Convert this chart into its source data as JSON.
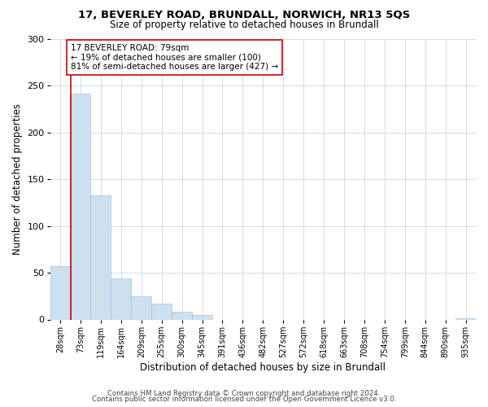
{
  "title": "17, BEVERLEY ROAD, BRUNDALL, NORWICH, NR13 5QS",
  "subtitle": "Size of property relative to detached houses in Brundall",
  "xlabel": "Distribution of detached houses by size in Brundall",
  "ylabel": "Number of detached properties",
  "bin_labels": [
    "28sqm",
    "73sqm",
    "119sqm",
    "164sqm",
    "209sqm",
    "255sqm",
    "300sqm",
    "345sqm",
    "391sqm",
    "436sqm",
    "482sqm",
    "527sqm",
    "572sqm",
    "618sqm",
    "663sqm",
    "708sqm",
    "754sqm",
    "799sqm",
    "844sqm",
    "890sqm",
    "935sqm"
  ],
  "bar_heights": [
    57,
    242,
    133,
    44,
    25,
    17,
    8,
    5,
    0,
    0,
    0,
    0,
    0,
    0,
    0,
    0,
    0,
    0,
    0,
    0,
    1
  ],
  "bar_color": "#cce0f0",
  "bar_edge_color": "#a0c4e0",
  "vline_x_index": 1,
  "vline_color": "#cc0000",
  "annotation_line1": "17 BEVERLEY ROAD: 79sqm",
  "annotation_line2": "← 19% of detached houses are smaller (100)",
  "annotation_line3": "81% of semi-detached houses are larger (427) →",
  "ylim": [
    0,
    300
  ],
  "yticks": [
    0,
    50,
    100,
    150,
    200,
    250,
    300
  ],
  "footer_line1": "Contains HM Land Registry data © Crown copyright and database right 2024.",
  "footer_line2": "Contains public sector information licensed under the Open Government Licence v3.0.",
  "background_color": "#ffffff",
  "grid_color": "#d0dce8"
}
